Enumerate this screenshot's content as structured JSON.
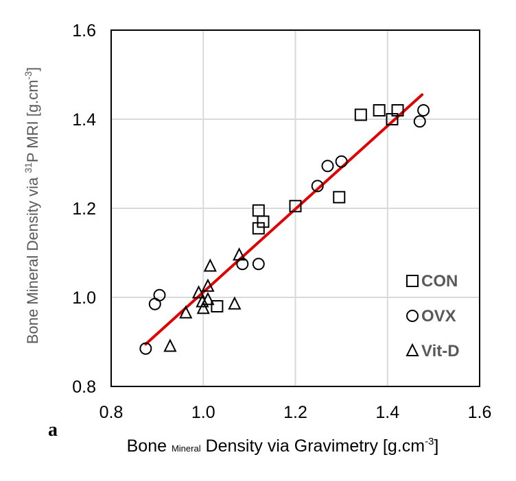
{
  "chart_data": {
    "type": "scatter",
    "panel_label": "a",
    "xlabel": {
      "pre": "Bone",
      "sub": "Mineral",
      "main": "Density via Gravimetry [g.cm",
      "sup": "-3",
      "post": "]"
    },
    "ylabel": {
      "pre": "Bone Mineral Density via",
      "sup1": "31",
      "mid": "P MRI [g.cm",
      "sup2": "-3",
      "post": "]"
    },
    "xlim": [
      0.8,
      1.6
    ],
    "ylim": [
      0.8,
      1.6
    ],
    "xticks": [
      "0.8",
      "1.0",
      "1.2",
      "1.4",
      "1.6"
    ],
    "yticks": [
      "0.8",
      "1.0",
      "1.2",
      "1.4",
      "1.6"
    ],
    "grid": true,
    "legend_position": "bottom-right",
    "series": [
      {
        "name": "CON",
        "marker": "square",
        "points": [
          {
            "x": 1.342,
            "y": 1.41
          },
          {
            "x": 1.382,
            "y": 1.42
          },
          {
            "x": 1.422,
            "y": 1.42
          },
          {
            "x": 1.41,
            "y": 1.4
          },
          {
            "x": 1.295,
            "y": 1.225
          },
          {
            "x": 1.2,
            "y": 1.205
          },
          {
            "x": 1.12,
            "y": 1.195
          },
          {
            "x": 1.13,
            "y": 1.17
          },
          {
            "x": 1.12,
            "y": 1.155
          },
          {
            "x": 1.03,
            "y": 0.98
          }
        ]
      },
      {
        "name": "OVX",
        "marker": "circle",
        "points": [
          {
            "x": 1.478,
            "y": 1.42
          },
          {
            "x": 1.47,
            "y": 1.395
          },
          {
            "x": 1.3,
            "y": 1.305
          },
          {
            "x": 1.27,
            "y": 1.295
          },
          {
            "x": 1.248,
            "y": 1.25
          },
          {
            "x": 1.12,
            "y": 1.075
          },
          {
            "x": 1.085,
            "y": 1.075
          },
          {
            "x": 0.905,
            "y": 1.005
          },
          {
            "x": 0.895,
            "y": 0.985
          },
          {
            "x": 0.875,
            "y": 0.885
          }
        ]
      },
      {
        "name": "Vit-D",
        "marker": "triangle",
        "points": [
          {
            "x": 1.078,
            "y": 1.095
          },
          {
            "x": 1.015,
            "y": 1.07
          },
          {
            "x": 1.068,
            "y": 0.985
          },
          {
            "x": 1.01,
            "y": 1.025
          },
          {
            "x": 0.99,
            "y": 1.01
          },
          {
            "x": 1.01,
            "y": 0.995
          },
          {
            "x": 0.998,
            "y": 0.99
          },
          {
            "x": 1.0,
            "y": 0.975
          },
          {
            "x": 0.962,
            "y": 0.965
          },
          {
            "x": 0.928,
            "y": 0.89
          }
        ]
      }
    ],
    "fit_line": {
      "x": [
        0.875,
        1.475
      ],
      "y": [
        0.895,
        1.455
      ],
      "color": "#e00000"
    }
  }
}
